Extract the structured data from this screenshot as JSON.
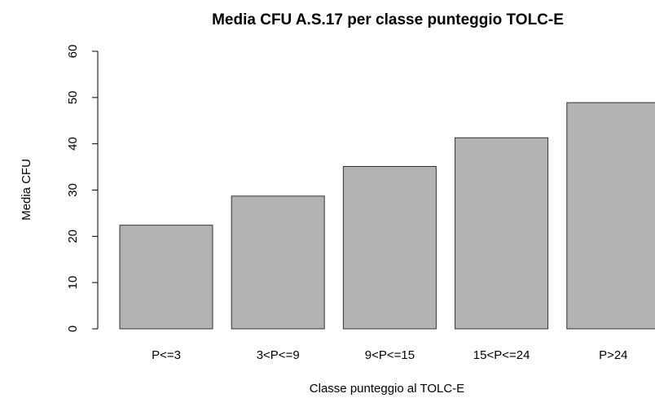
{
  "chart_data": {
    "type": "bar",
    "title": "Media CFU A.S.17 per classe punteggio TOLC-E",
    "x_label": "Classe punteggio al TOLC-E",
    "y_label": "Media CFU",
    "categories": [
      "P<=3",
      "3<P<=9",
      "9<P<=15",
      "15<P<=24",
      "P>24"
    ],
    "values": [
      22.4,
      28.7,
      35.1,
      41.3,
      48.9
    ],
    "color": "#b3b3b3",
    "ylim": [
      0,
      60
    ],
    "yticks": [
      0,
      10,
      20,
      30,
      40,
      50,
      60
    ]
  }
}
